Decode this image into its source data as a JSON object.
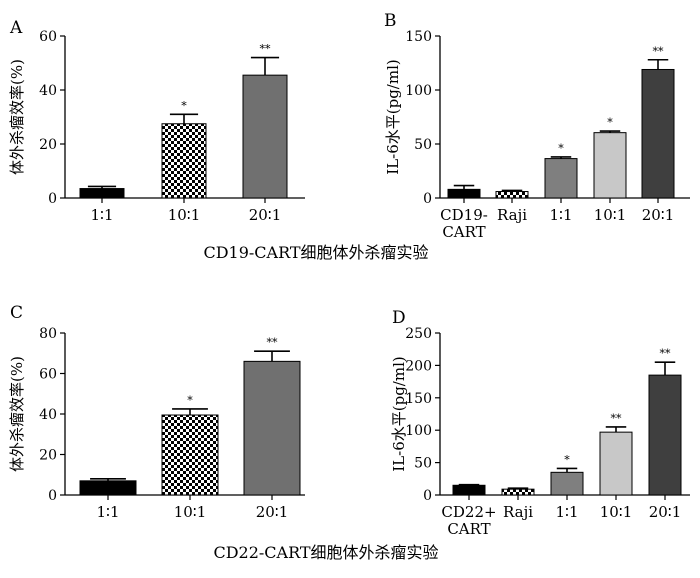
{
  "figure": {
    "captions": [
      "CD19-CART细胞体外杀瘤实验",
      "CD22-CART细胞体外杀瘤实验"
    ]
  },
  "chart_data": [
    {
      "panel": "A",
      "type": "bar",
      "categories": [
        "1∶1",
        "10∶1",
        "20∶1"
      ],
      "values": [
        3.5,
        27.5,
        45.5
      ],
      "errors": [
        0.8,
        3.5,
        6.5
      ],
      "significance": [
        "",
        "*",
        "**"
      ],
      "fills": [
        "black",
        "checker",
        "#707070"
      ],
      "ylabel": "体外杀瘤效率(%)",
      "xlabel": "",
      "ylim": [
        0,
        60
      ],
      "yticks": [
        0,
        20,
        40,
        60
      ],
      "grid": false
    },
    {
      "panel": "B",
      "type": "bar",
      "categories": [
        [
          "CD19-",
          "CART"
        ],
        "Raji",
        "1∶1",
        "10∶1",
        "20∶1"
      ],
      "values": [
        8,
        6,
        36.5,
        60.5,
        119
      ],
      "errors": [
        3.5,
        1,
        1.5,
        1.5,
        9
      ],
      "significance": [
        "",
        "",
        "*",
        "*",
        "**"
      ],
      "fills": [
        "black",
        "checker",
        "#7f7f7f",
        "#c8c8c8",
        "#3f3f3f"
      ],
      "ylabel": "IL-6水平(pg/ml)",
      "xlabel": "",
      "ylim": [
        0,
        150
      ],
      "yticks": [
        0,
        50,
        100,
        150
      ],
      "grid": false
    },
    {
      "panel": "C",
      "type": "bar",
      "categories": [
        "1∶1",
        "10∶1",
        "20∶1"
      ],
      "values": [
        7,
        39.5,
        66
      ],
      "errors": [
        1,
        3,
        5
      ],
      "significance": [
        "",
        "*",
        "**"
      ],
      "fills": [
        "black",
        "checker",
        "#707070"
      ],
      "ylabel": "体外杀瘤效率(%)",
      "xlabel": "",
      "ylim": [
        0,
        80
      ],
      "yticks": [
        0,
        20,
        40,
        60,
        80
      ],
      "grid": false
    },
    {
      "panel": "D",
      "type": "bar",
      "categories": [
        [
          "CD22+",
          "CART"
        ],
        "Raji",
        "1∶1",
        "10∶1",
        "20∶1"
      ],
      "values": [
        15,
        9,
        35,
        97,
        185
      ],
      "errors": [
        1,
        1.5,
        6,
        8,
        20
      ],
      "significance": [
        "",
        "",
        "*",
        "**",
        "**"
      ],
      "fills": [
        "black",
        "checker",
        "#7f7f7f",
        "#c8c8c8",
        "#3f3f3f"
      ],
      "ylabel": "IL-6水平(pg/ml)",
      "xlabel": "",
      "ylim": [
        0,
        250
      ],
      "yticks": [
        0,
        50,
        100,
        150,
        200,
        250
      ],
      "grid": false
    }
  ]
}
